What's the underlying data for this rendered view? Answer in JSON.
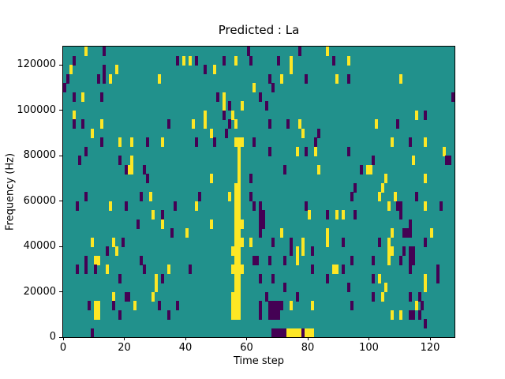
{
  "figure": {
    "background": "#ffffff"
  },
  "chart_data": {
    "type": "heatmap",
    "title": "Predicted : La",
    "xlabel": "Time step",
    "ylabel": "Frequency (Hz)",
    "x_range": [
      0,
      128
    ],
    "y_range": [
      0,
      128000
    ],
    "x_ticks": [
      0,
      20,
      40,
      60,
      80,
      100,
      120
    ],
    "y_ticks": [
      0,
      20000,
      40000,
      60000,
      80000,
      100000,
      120000
    ],
    "grid_cols": 128,
    "grid_rows": 32,
    "grid": false,
    "legend_position": "none",
    "colors": {
      "mid": "#21918c",
      "high": "#fde725",
      "low": "#440154",
      "axis": "#000000"
    },
    "cells_note": "Sparse cells over mid-color background; [col,row], row 0 = top (high frequency), col 0 = left (time step 0). high = yellow, low = dark purple.",
    "cells": {
      "high": [
        [
          7,
          0
        ],
        [
          86,
          0
        ],
        [
          39,
          1
        ],
        [
          41,
          1
        ],
        [
          56,
          1
        ],
        [
          74,
          1
        ],
        [
          93,
          1
        ],
        [
          2,
          2
        ],
        [
          17,
          2
        ],
        [
          49,
          2
        ],
        [
          74,
          2
        ],
        [
          15,
          3
        ],
        [
          31,
          3
        ],
        [
          71,
          3
        ],
        [
          89,
          3
        ],
        [
          110,
          3
        ],
        [
          62,
          4
        ],
        [
          6,
          5
        ],
        [
          52,
          5
        ],
        [
          52,
          6
        ],
        [
          58,
          6
        ],
        [
          3,
          7
        ],
        [
          46,
          7
        ],
        [
          55,
          7
        ],
        [
          115,
          7
        ],
        [
          12,
          8
        ],
        [
          42,
          8
        ],
        [
          46,
          8
        ],
        [
          56,
          8
        ],
        [
          77,
          8
        ],
        [
          102,
          8
        ],
        [
          9,
          9
        ],
        [
          48,
          9
        ],
        [
          78,
          9
        ],
        [
          18,
          10
        ],
        [
          22,
          10
        ],
        [
          32,
          10
        ],
        [
          56,
          10
        ],
        [
          57,
          10
        ],
        [
          58,
          10
        ],
        [
          107,
          10
        ],
        [
          118,
          10
        ],
        [
          57,
          11
        ],
        [
          76,
          11
        ],
        [
          82,
          11
        ],
        [
          124,
          11
        ],
        [
          22,
          12
        ],
        [
          57,
          12
        ],
        [
          114,
          12
        ],
        [
          21,
          13
        ],
        [
          22,
          13
        ],
        [
          57,
          13
        ],
        [
          83,
          13
        ],
        [
          99,
          13
        ],
        [
          100,
          13
        ],
        [
          48,
          14
        ],
        [
          57,
          14
        ],
        [
          105,
          14
        ],
        [
          118,
          14
        ],
        [
          56,
          15
        ],
        [
          57,
          15
        ],
        [
          104,
          15
        ],
        [
          28,
          16
        ],
        [
          54,
          16
        ],
        [
          56,
          16
        ],
        [
          57,
          16
        ],
        [
          103,
          16
        ],
        [
          108,
          16
        ],
        [
          15,
          17
        ],
        [
          43,
          17
        ],
        [
          56,
          17
        ],
        [
          57,
          17
        ],
        [
          106,
          17
        ],
        [
          118,
          17
        ],
        [
          29,
          18
        ],
        [
          56,
          18
        ],
        [
          57,
          18
        ],
        [
          80,
          18
        ],
        [
          89,
          18
        ],
        [
          91,
          18
        ],
        [
          32,
          19
        ],
        [
          48,
          19
        ],
        [
          56,
          19
        ],
        [
          57,
          19
        ],
        [
          58,
          19
        ],
        [
          40,
          20
        ],
        [
          56,
          20
        ],
        [
          57,
          20
        ],
        [
          71,
          20
        ],
        [
          86,
          20
        ],
        [
          107,
          20
        ],
        [
          120,
          20
        ],
        [
          9,
          21
        ],
        [
          16,
          21
        ],
        [
          56,
          21
        ],
        [
          57,
          21
        ],
        [
          58,
          21
        ],
        [
          61,
          21
        ],
        [
          78,
          21
        ],
        [
          86,
          21
        ],
        [
          106,
          21
        ],
        [
          17,
          22
        ],
        [
          55,
          22
        ],
        [
          56,
          22
        ],
        [
          57,
          22
        ],
        [
          76,
          22
        ],
        [
          78,
          22
        ],
        [
          106,
          22
        ],
        [
          107,
          22
        ],
        [
          10,
          23
        ],
        [
          11,
          23
        ],
        [
          56,
          23
        ],
        [
          57,
          23
        ],
        [
          76,
          23
        ],
        [
          106,
          23
        ],
        [
          14,
          24
        ],
        [
          34,
          24
        ],
        [
          55,
          24
        ],
        [
          56,
          24
        ],
        [
          57,
          24
        ],
        [
          58,
          24
        ],
        [
          88,
          24
        ],
        [
          89,
          24
        ],
        [
          30,
          25
        ],
        [
          56,
          25
        ],
        [
          57,
          25
        ],
        [
          103,
          25
        ],
        [
          118,
          25
        ],
        [
          30,
          26
        ],
        [
          56,
          26
        ],
        [
          57,
          26
        ],
        [
          105,
          26
        ],
        [
          118,
          26
        ],
        [
          16,
          27
        ],
        [
          29,
          27
        ],
        [
          55,
          27
        ],
        [
          56,
          27
        ],
        [
          57,
          27
        ],
        [
          104,
          27
        ],
        [
          10,
          28
        ],
        [
          11,
          28
        ],
        [
          23,
          28
        ],
        [
          55,
          28
        ],
        [
          56,
          28
        ],
        [
          57,
          28
        ],
        [
          74,
          28
        ],
        [
          81,
          28
        ],
        [
          115,
          28
        ],
        [
          10,
          29
        ],
        [
          11,
          29
        ],
        [
          55,
          29
        ],
        [
          56,
          29
        ],
        [
          57,
          29
        ],
        [
          107,
          29
        ],
        [
          110,
          29
        ],
        [
          73,
          31
        ],
        [
          74,
          31
        ],
        [
          75,
          31
        ],
        [
          76,
          31
        ],
        [
          77,
          31
        ],
        [
          79,
          31
        ],
        [
          80,
          31
        ],
        [
          81,
          31
        ]
      ],
      "low": [
        [
          13,
          0
        ],
        [
          60,
          0
        ],
        [
          77,
          0
        ],
        [
          3,
          1
        ],
        [
          37,
          1
        ],
        [
          43,
          1
        ],
        [
          52,
          1
        ],
        [
          61,
          1
        ],
        [
          70,
          1
        ],
        [
          88,
          1
        ],
        [
          13,
          2
        ],
        [
          46,
          2
        ],
        [
          1,
          3
        ],
        [
          11,
          3
        ],
        [
          13,
          3
        ],
        [
          67,
          3
        ],
        [
          79,
          3
        ],
        [
          93,
          3
        ],
        [
          0,
          4
        ],
        [
          68,
          4
        ],
        [
          3,
          5
        ],
        [
          12,
          5
        ],
        [
          50,
          5
        ],
        [
          64,
          5
        ],
        [
          127,
          5
        ],
        [
          54,
          6
        ],
        [
          66,
          6
        ],
        [
          52,
          7
        ],
        [
          118,
          7
        ],
        [
          3,
          8
        ],
        [
          6,
          8
        ],
        [
          34,
          8
        ],
        [
          54,
          8
        ],
        [
          67,
          8
        ],
        [
          73,
          8
        ],
        [
          109,
          8
        ],
        [
          53,
          9
        ],
        [
          83,
          9
        ],
        [
          12,
          10
        ],
        [
          27,
          10
        ],
        [
          43,
          10
        ],
        [
          49,
          10
        ],
        [
          62,
          10
        ],
        [
          82,
          10
        ],
        [
          113,
          10
        ],
        [
          7,
          11
        ],
        [
          67,
          11
        ],
        [
          79,
          11
        ],
        [
          93,
          11
        ],
        [
          5,
          12
        ],
        [
          18,
          12
        ],
        [
          101,
          12
        ],
        [
          125,
          12
        ],
        [
          126,
          12
        ],
        [
          20,
          13
        ],
        [
          26,
          13
        ],
        [
          72,
          13
        ],
        [
          97,
          13
        ],
        [
          27,
          14
        ],
        [
          61,
          14
        ],
        [
          95,
          15
        ],
        [
          7,
          16
        ],
        [
          25,
          16
        ],
        [
          44,
          16
        ],
        [
          61,
          16
        ],
        [
          94,
          16
        ],
        [
          115,
          16
        ],
        [
          4,
          17
        ],
        [
          20,
          17
        ],
        [
          36,
          17
        ],
        [
          62,
          17
        ],
        [
          64,
          17
        ],
        [
          79,
          17
        ],
        [
          109,
          17
        ],
        [
          110,
          17
        ],
        [
          123,
          17
        ],
        [
          32,
          18
        ],
        [
          64,
          18
        ],
        [
          65,
          18
        ],
        [
          86,
          18
        ],
        [
          95,
          18
        ],
        [
          110,
          18
        ],
        [
          24,
          19
        ],
        [
          64,
          19
        ],
        [
          65,
          19
        ],
        [
          113,
          19
        ],
        [
          35,
          20
        ],
        [
          64,
          20
        ],
        [
          111,
          20
        ],
        [
          112,
          20
        ],
        [
          113,
          20
        ],
        [
          19,
          21
        ],
        [
          68,
          21
        ],
        [
          74,
          21
        ],
        [
          91,
          21
        ],
        [
          103,
          21
        ],
        [
          118,
          21
        ],
        [
          14,
          22
        ],
        [
          74,
          22
        ],
        [
          81,
          22
        ],
        [
          111,
          22
        ],
        [
          113,
          22
        ],
        [
          114,
          22
        ],
        [
          7,
          23
        ],
        [
          25,
          23
        ],
        [
          62,
          23
        ],
        [
          63,
          23
        ],
        [
          67,
          23
        ],
        [
          72,
          23
        ],
        [
          94,
          23
        ],
        [
          101,
          23
        ],
        [
          110,
          23
        ],
        [
          113,
          23
        ],
        [
          114,
          23
        ],
        [
          4,
          24
        ],
        [
          7,
          24
        ],
        [
          10,
          24
        ],
        [
          26,
          24
        ],
        [
          41,
          24
        ],
        [
          81,
          24
        ],
        [
          91,
          24
        ],
        [
          113,
          24
        ],
        [
          122,
          24
        ],
        [
          18,
          25
        ],
        [
          32,
          25
        ],
        [
          64,
          25
        ],
        [
          68,
          25
        ],
        [
          86,
          25
        ],
        [
          101,
          25
        ],
        [
          122,
          25
        ],
        [
          72,
          26
        ],
        [
          93,
          26
        ],
        [
          20,
          27
        ],
        [
          21,
          27
        ],
        [
          66,
          27
        ],
        [
          76,
          27
        ],
        [
          101,
          27
        ],
        [
          113,
          27
        ],
        [
          116,
          27
        ],
        [
          8,
          28
        ],
        [
          16,
          28
        ],
        [
          31,
          28
        ],
        [
          37,
          28
        ],
        [
          64,
          28
        ],
        [
          67,
          28
        ],
        [
          68,
          28
        ],
        [
          69,
          28
        ],
        [
          70,
          28
        ],
        [
          71,
          28
        ],
        [
          94,
          28
        ],
        [
          117,
          28
        ],
        [
          18,
          29
        ],
        [
          34,
          29
        ],
        [
          64,
          29
        ],
        [
          67,
          29
        ],
        [
          68,
          29
        ],
        [
          69,
          29
        ],
        [
          70,
          29
        ],
        [
          113,
          29
        ],
        [
          114,
          29
        ],
        [
          116,
          29
        ],
        [
          118,
          30
        ],
        [
          9,
          31
        ],
        [
          68,
          31
        ],
        [
          69,
          31
        ],
        [
          70,
          31
        ],
        [
          71,
          31
        ],
        [
          72,
          31
        ],
        [
          78,
          31
        ]
      ]
    }
  }
}
